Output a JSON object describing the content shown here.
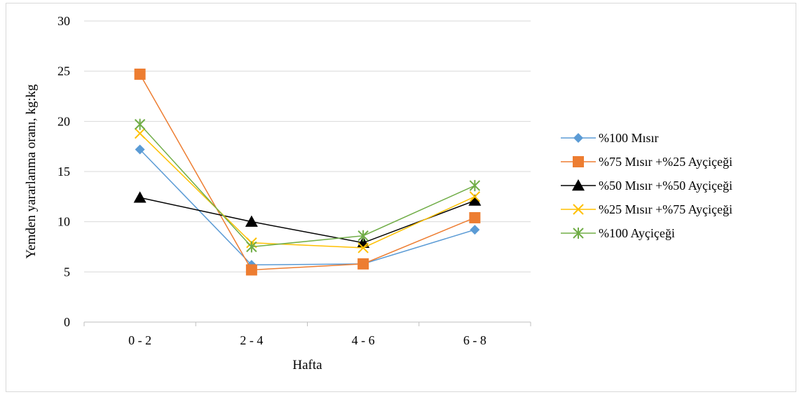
{
  "chart_data": {
    "type": "line",
    "title": "",
    "xlabel": "Hafta",
    "ylabel": "Yemden yararlanma oranı, kg:kg",
    "categories": [
      "0 - 2",
      "2 - 4",
      "4 - 6",
      "6 - 8"
    ],
    "ylim": [
      0,
      30
    ],
    "yticks": [
      0,
      5,
      10,
      15,
      20,
      25,
      30
    ],
    "grid": true,
    "legend_position": "right",
    "series": [
      {
        "name": "%100 Mısır",
        "values": [
          17.2,
          5.7,
          5.8,
          9.2
        ],
        "color": "#5b9bd5",
        "marker": "diamond"
      },
      {
        "name": "%75 Mısır +%25 Ayçiçeği",
        "values": [
          24.7,
          5.2,
          5.8,
          10.4
        ],
        "color": "#ed7d31",
        "marker": "square"
      },
      {
        "name": "%50 Mısır +%50 Ayçiçeği",
        "values": [
          12.4,
          10.0,
          7.9,
          12.1
        ],
        "color": "#000000",
        "marker": "triangle"
      },
      {
        "name": "%25 Mısır +%75 Ayçiçeği",
        "values": [
          18.8,
          7.9,
          7.4,
          12.5
        ],
        "color": "#ffc000",
        "marker": "x"
      },
      {
        "name": "%100 Ayçiçeği",
        "values": [
          19.7,
          7.5,
          8.6,
          13.6
        ],
        "color": "#70ad47",
        "marker": "star"
      }
    ]
  }
}
